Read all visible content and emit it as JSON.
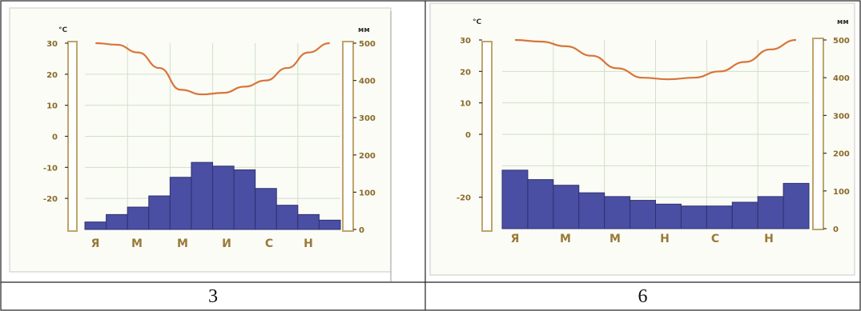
{
  "colors": {
    "bar": "#4b4fa3",
    "bar_stroke": "#2e3170",
    "temp_line": "#d9743a",
    "tick_text": "#8a6a2a",
    "month_text": "#9a7a3a",
    "grid": "#cfe0c8",
    "axis_box": "#bfa46a",
    "background": "#fbfcf6"
  },
  "chart_data": [
    {
      "type": "bar+line",
      "caption": "3",
      "left_unit": "°C",
      "right_unit": "мм",
      "temp_ylim": [
        -30,
        30
      ],
      "precip_ylim": [
        0,
        500
      ],
      "temp_ticks": [
        "30",
        "20",
        "10",
        "0",
        "-10",
        "-20"
      ],
      "precip_ticks": [
        "500",
        "400",
        "300",
        "200",
        "100",
        "0"
      ],
      "month_labels": [
        "Я",
        "М",
        "М",
        "И",
        "С",
        "Н"
      ],
      "precipitation_mm": [
        20,
        40,
        60,
        90,
        140,
        180,
        170,
        160,
        110,
        65,
        40,
        25
      ],
      "temperature_c": [
        30,
        29.5,
        27,
        22,
        15,
        13.5,
        14,
        16,
        18,
        22,
        27,
        30
      ]
    },
    {
      "type": "bar+line",
      "caption": "6",
      "left_unit": "°C",
      "right_unit": "мм",
      "temp_ylim": [
        -30,
        30
      ],
      "precip_ylim": [
        0,
        500
      ],
      "temp_ticks": [
        "30",
        "20",
        "10",
        "0",
        "-20"
      ],
      "precip_ticks": [
        "500",
        "400",
        "300",
        "200",
        "100",
        "0"
      ],
      "month_labels": [
        "Я",
        "М",
        "М",
        "Н",
        "С",
        "Н"
      ],
      "precipitation_mm": [
        155,
        130,
        115,
        95,
        85,
        75,
        65,
        60,
        60,
        70,
        85,
        120
      ],
      "temperature_c": [
        30,
        29.5,
        28,
        25,
        21,
        18,
        17.5,
        18,
        20,
        23,
        27,
        30
      ]
    }
  ]
}
